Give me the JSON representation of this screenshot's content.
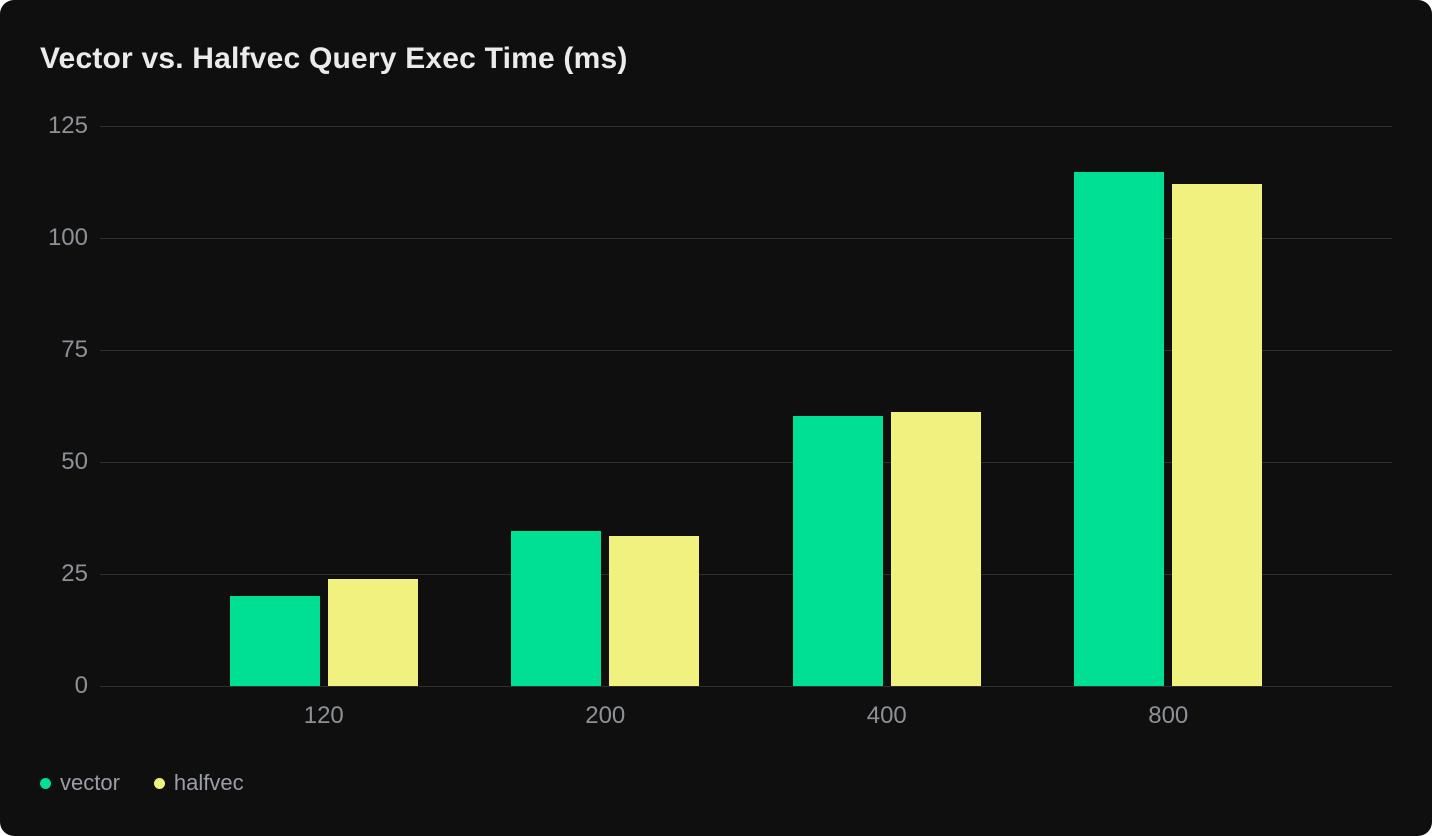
{
  "theme": {
    "page_background": "#ffffff",
    "card_background": "#0f0f10",
    "title_color": "#ebebeb",
    "axis_label_color": "#8d9197",
    "legend_label_color": "#9a9ea5",
    "gridline_color": "rgba(255,255,255,0.14)"
  },
  "chart_data": {
    "type": "bar",
    "title": "Vector vs. Halfvec Query Exec Time (ms)",
    "categories": [
      "120",
      "200",
      "400",
      "800"
    ],
    "series": [
      {
        "name": "vector",
        "color": "#00e095",
        "values": [
          20.2,
          34.5,
          60.3,
          114.8
        ]
      },
      {
        "name": "halfvec",
        "color": "#f0f17e",
        "values": [
          23.9,
          33.5,
          61.2,
          112.1
        ]
      }
    ],
    "xlabel": "",
    "ylabel": "",
    "ylim": [
      0,
      125
    ],
    "yticks": [
      0,
      25,
      50,
      75,
      100,
      125
    ],
    "grid": "horizontal",
    "legend_position": "bottom-left"
  }
}
